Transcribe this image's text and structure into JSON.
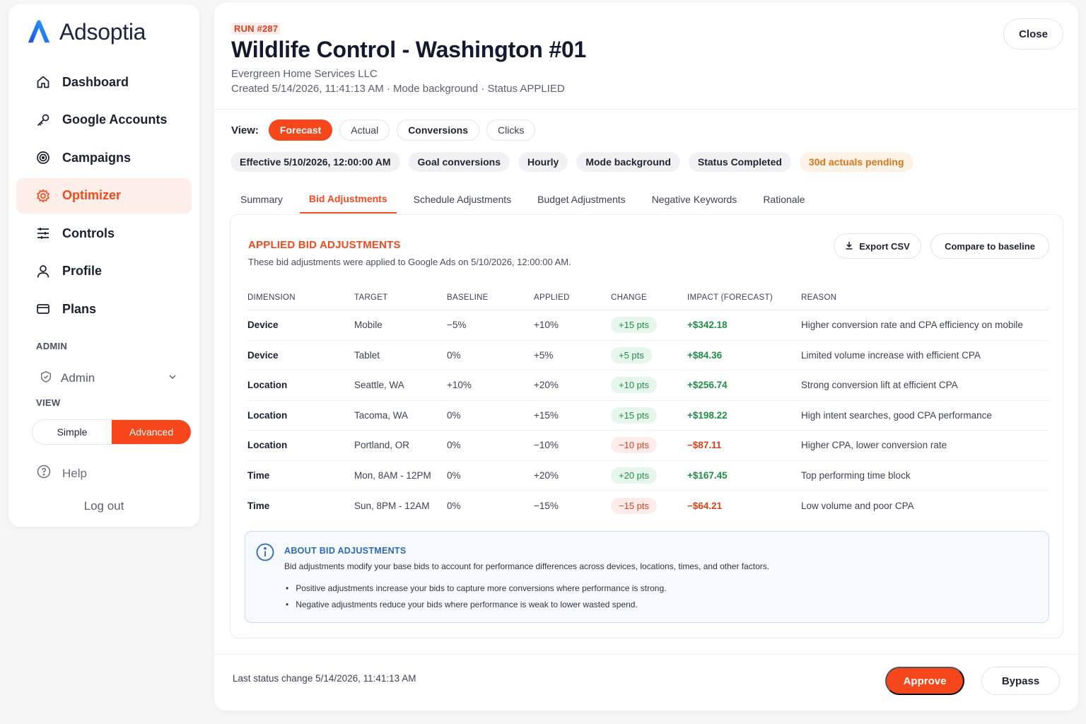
{
  "brand": {
    "name": "Adsoptia",
    "accent": "#f5461c"
  },
  "sidebar": {
    "items": [
      {
        "label": "Dashboard",
        "icon": "home-icon"
      },
      {
        "label": "Google Accounts",
        "icon": "key-icon"
      },
      {
        "label": "Campaigns",
        "icon": "target-icon"
      },
      {
        "label": "Optimizer",
        "icon": "gear-icon",
        "active": true
      },
      {
        "label": "Controls",
        "icon": "sliders-icon"
      },
      {
        "label": "Profile",
        "icon": "user-icon"
      },
      {
        "label": "Plans",
        "icon": "card-icon"
      }
    ],
    "admin_section": "ADMIN",
    "admin_label": "Admin",
    "view_section": "VIEW",
    "view_simple": "Simple",
    "view_advanced": "Advanced",
    "view_selected": "Advanced",
    "help": "Help",
    "logout": "Log out"
  },
  "header": {
    "run": "RUN #287",
    "title": "Wildlife Control - Washington #01",
    "company": "Evergreen Home Services LLC",
    "meta": "Created 5/14/2026, 11:41:13 AM · Mode background · Status APPLIED",
    "close": "Close"
  },
  "view": {
    "label": "View:",
    "options": [
      "Forecast",
      "Actual",
      "Conversions",
      "Clicks"
    ],
    "selected": "Forecast"
  },
  "chips": [
    "Effective 5/10/2026, 12:00:00 AM",
    "Goal conversions",
    "Hourly",
    "Mode background",
    "Status Completed"
  ],
  "warn_chip": "30d actuals pending",
  "tabs": [
    "Summary",
    "Bid Adjustments",
    "Schedule Adjustments",
    "Budget Adjustments",
    "Negative Keywords",
    "Rationale"
  ],
  "active_tab": "Bid Adjustments",
  "card": {
    "title": "APPLIED BID ADJUSTMENTS",
    "description": "These bid adjustments were applied to Google Ads on 5/10/2026, 12:00:00 AM.",
    "export": "Export CSV",
    "compare": "Compare to baseline"
  },
  "table": {
    "columns": [
      "DIMENSION",
      "TARGET",
      "BASELINE",
      "APPLIED",
      "CHANGE",
      "IMPACT (FORECAST)",
      "REASON"
    ],
    "rows": [
      {
        "dimension": "Device",
        "target": "Mobile",
        "baseline": "−5%",
        "applied": "+10%",
        "change": "+15 pts",
        "impact": "+$342.18",
        "reason": "Higher conversion rate and CPA efficiency on mobile",
        "sign": "pos"
      },
      {
        "dimension": "Device",
        "target": "Tablet",
        "baseline": "0%",
        "applied": "+5%",
        "change": "+5 pts",
        "impact": "+$84.36",
        "reason": "Limited volume increase with efficient CPA",
        "sign": "pos"
      },
      {
        "dimension": "Location",
        "target": "Seattle, WA",
        "baseline": "+10%",
        "applied": "+20%",
        "change": "+10 pts",
        "impact": "+$256.74",
        "reason": "Strong conversion lift at efficient CPA",
        "sign": "pos"
      },
      {
        "dimension": "Location",
        "target": "Tacoma, WA",
        "baseline": "0%",
        "applied": "+15%",
        "change": "+15 pts",
        "impact": "+$198.22",
        "reason": "High intent searches, good CPA performance",
        "sign": "pos"
      },
      {
        "dimension": "Location",
        "target": "Portland, OR",
        "baseline": "0%",
        "applied": "−10%",
        "change": "−10 pts",
        "impact": "−$87.11",
        "reason": "Higher CPA, lower conversion rate",
        "sign": "neg"
      },
      {
        "dimension": "Time",
        "target": "Mon, 8AM - 12PM",
        "baseline": "0%",
        "applied": "+20%",
        "change": "+20 pts",
        "impact": "+$167.45",
        "reason": "Top performing time block",
        "sign": "pos"
      },
      {
        "dimension": "Time",
        "target": "Sun, 8PM - 12AM",
        "baseline": "0%",
        "applied": "−15%",
        "change": "−15 pts",
        "impact": "−$64.21",
        "reason": "Low volume and poor CPA",
        "sign": "neg"
      }
    ]
  },
  "info": {
    "title": "ABOUT BID ADJUSTMENTS",
    "text": "Bid adjustments modify your base bids to account for performance differences across devices, locations, times, and other factors.",
    "bullets": [
      "Positive adjustments increase your bids to capture more conversions where performance is strong.",
      "Negative adjustments reduce your bids where performance is weak to lower wasted spend."
    ]
  },
  "footer": {
    "status": "Last status change 5/14/2026, 11:41:13 AM",
    "approve": "Approve",
    "bypass": "Bypass"
  }
}
